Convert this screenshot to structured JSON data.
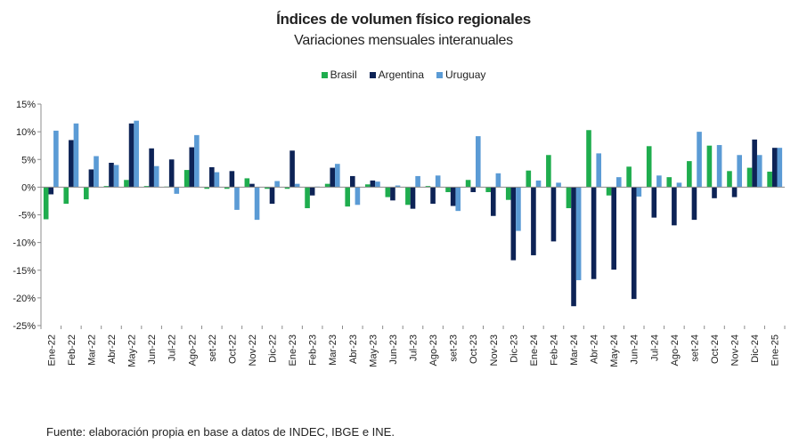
{
  "chart_data": {
    "type": "bar",
    "title": "Índices de volumen físico regionales",
    "subtitle": "Variaciones mensuales interanuales",
    "legend_position": "top",
    "grid": false,
    "ylim": [
      -25,
      15
    ],
    "yticks": [
      "15%",
      "10%",
      "5%",
      "0%",
      "-5%",
      "-10%",
      "-15%",
      "-20%",
      "-25%"
    ],
    "categories": [
      "Ene-22",
      "Feb-22",
      "Mar-22",
      "Abr-22",
      "May-22",
      "Jun-22",
      "Jul-22",
      "Ago-22",
      "set-22",
      "Oct-22",
      "Nov-22",
      "Dic-22",
      "Ene-23",
      "Feb-23",
      "Mar-23",
      "Abr-23",
      "May-23",
      "Jun-23",
      "Jul-23",
      "Ago-23",
      "set-23",
      "Oct-23",
      "Nov-23",
      "Dic-23",
      "Ene-24",
      "Feb-24",
      "Mar-24",
      "Abr-24",
      "May-24",
      "Jun-24",
      "Jul-24",
      "Ago-24",
      "set-24",
      "Oct-24",
      "Nov-24",
      "Dic-24",
      "Ene-25"
    ],
    "series": [
      {
        "name": "Brasil",
        "color": "#1fad4e",
        "values": [
          -5.8,
          -3.0,
          -2.2,
          0.2,
          1.3,
          0.2,
          0.1,
          3.1,
          -0.3,
          -0.3,
          1.6,
          -0.3,
          -0.3,
          -3.8,
          0.6,
          -3.5,
          0.5,
          -1.8,
          -3.2,
          0.2,
          -0.9,
          1.3,
          -0.9,
          -2.3,
          3.0,
          5.8,
          -3.8,
          10.3,
          -1.5,
          3.7,
          7.4,
          1.8,
          4.7,
          7.5,
          2.9,
          3.5,
          2.8
        ]
      },
      {
        "name": "Argentina",
        "color": "#0d2356",
        "values": [
          -1.3,
          8.5,
          3.2,
          4.4,
          11.5,
          7.0,
          5.0,
          7.2,
          3.6,
          2.9,
          0.6,
          -3.0,
          6.6,
          -1.5,
          3.5,
          2.0,
          1.2,
          -2.4,
          -3.9,
          -3.0,
          -3.4,
          -0.9,
          -5.2,
          -13.2,
          -12.3,
          -9.8,
          -21.5,
          -16.6,
          -14.9,
          -20.2,
          -5.5,
          -6.9,
          -5.9,
          -2.0,
          -1.8,
          8.6,
          7.1
        ]
      },
      {
        "name": "Uruguay",
        "color": "#5b9bd5",
        "values": [
          10.2,
          11.5,
          5.6,
          4.0,
          12.0,
          3.8,
          -1.2,
          9.4,
          2.7,
          -4.1,
          -5.9,
          1.1,
          0.6,
          0.1,
          4.2,
          -3.2,
          1.0,
          0.3,
          2.0,
          2.1,
          -4.3,
          9.2,
          2.5,
          -7.9,
          1.2,
          0.8,
          -16.8,
          6.1,
          1.8,
          -1.7,
          2.1,
          0.8,
          10.0,
          7.6,
          5.8,
          5.8,
          7.1
        ]
      }
    ]
  },
  "source_note": "Fuente: elaboración propia en base a datos de INDEC, IBGE e INE."
}
